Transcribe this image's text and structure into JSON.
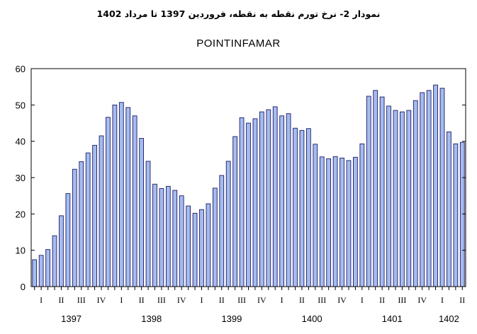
{
  "caption": "نمودار 2- نرخ تورم نقطه به نقطه، فروردین 1397 تا مرداد 1402",
  "chart_data": {
    "type": "bar",
    "title": "POINTINFAMAR",
    "xlabel": "",
    "ylabel": "",
    "ylim": [
      0,
      60
    ],
    "yticks": [
      0,
      10,
      20,
      30,
      40,
      50,
      60
    ],
    "grid": false,
    "bar_color": "#a6bcef",
    "bar_edge_color": "#1a1a66",
    "values": [
      7.4,
      8.6,
      10.2,
      14,
      19.5,
      25.6,
      32.3,
      34.4,
      36.8,
      38.9,
      41.5,
      46.6,
      50,
      50.7,
      49.3,
      47,
      40.8,
      34.5,
      28.2,
      27,
      27.6,
      26.5,
      25,
      22.2,
      20.2,
      21.2,
      22.8,
      27.1,
      30.6,
      34.5,
      41.3,
      46.5,
      45,
      46.2,
      48.1,
      48.7,
      49.5,
      47,
      47.6,
      43.6,
      43,
      43.5,
      39.2,
      35.7,
      35.2,
      35.8,
      35.4,
      34.7,
      35.6,
      39.3,
      52.4,
      54,
      52.2,
      49.7,
      48.5,
      48.1,
      48.5,
      51.2,
      53.4,
      54,
      55.5,
      54.6,
      42.6,
      39.3,
      39.7
    ],
    "quarter_labels": [
      "I",
      "II",
      "III",
      "IV",
      "I",
      "II",
      "III",
      "IV",
      "I",
      "II",
      "III",
      "IV",
      "I",
      "II",
      "III",
      "IV",
      "I",
      "II",
      "III",
      "IV",
      "I",
      "II"
    ],
    "year_labels": [
      "1397",
      "1398",
      "1399",
      "1400",
      "1401",
      "1402"
    ]
  }
}
